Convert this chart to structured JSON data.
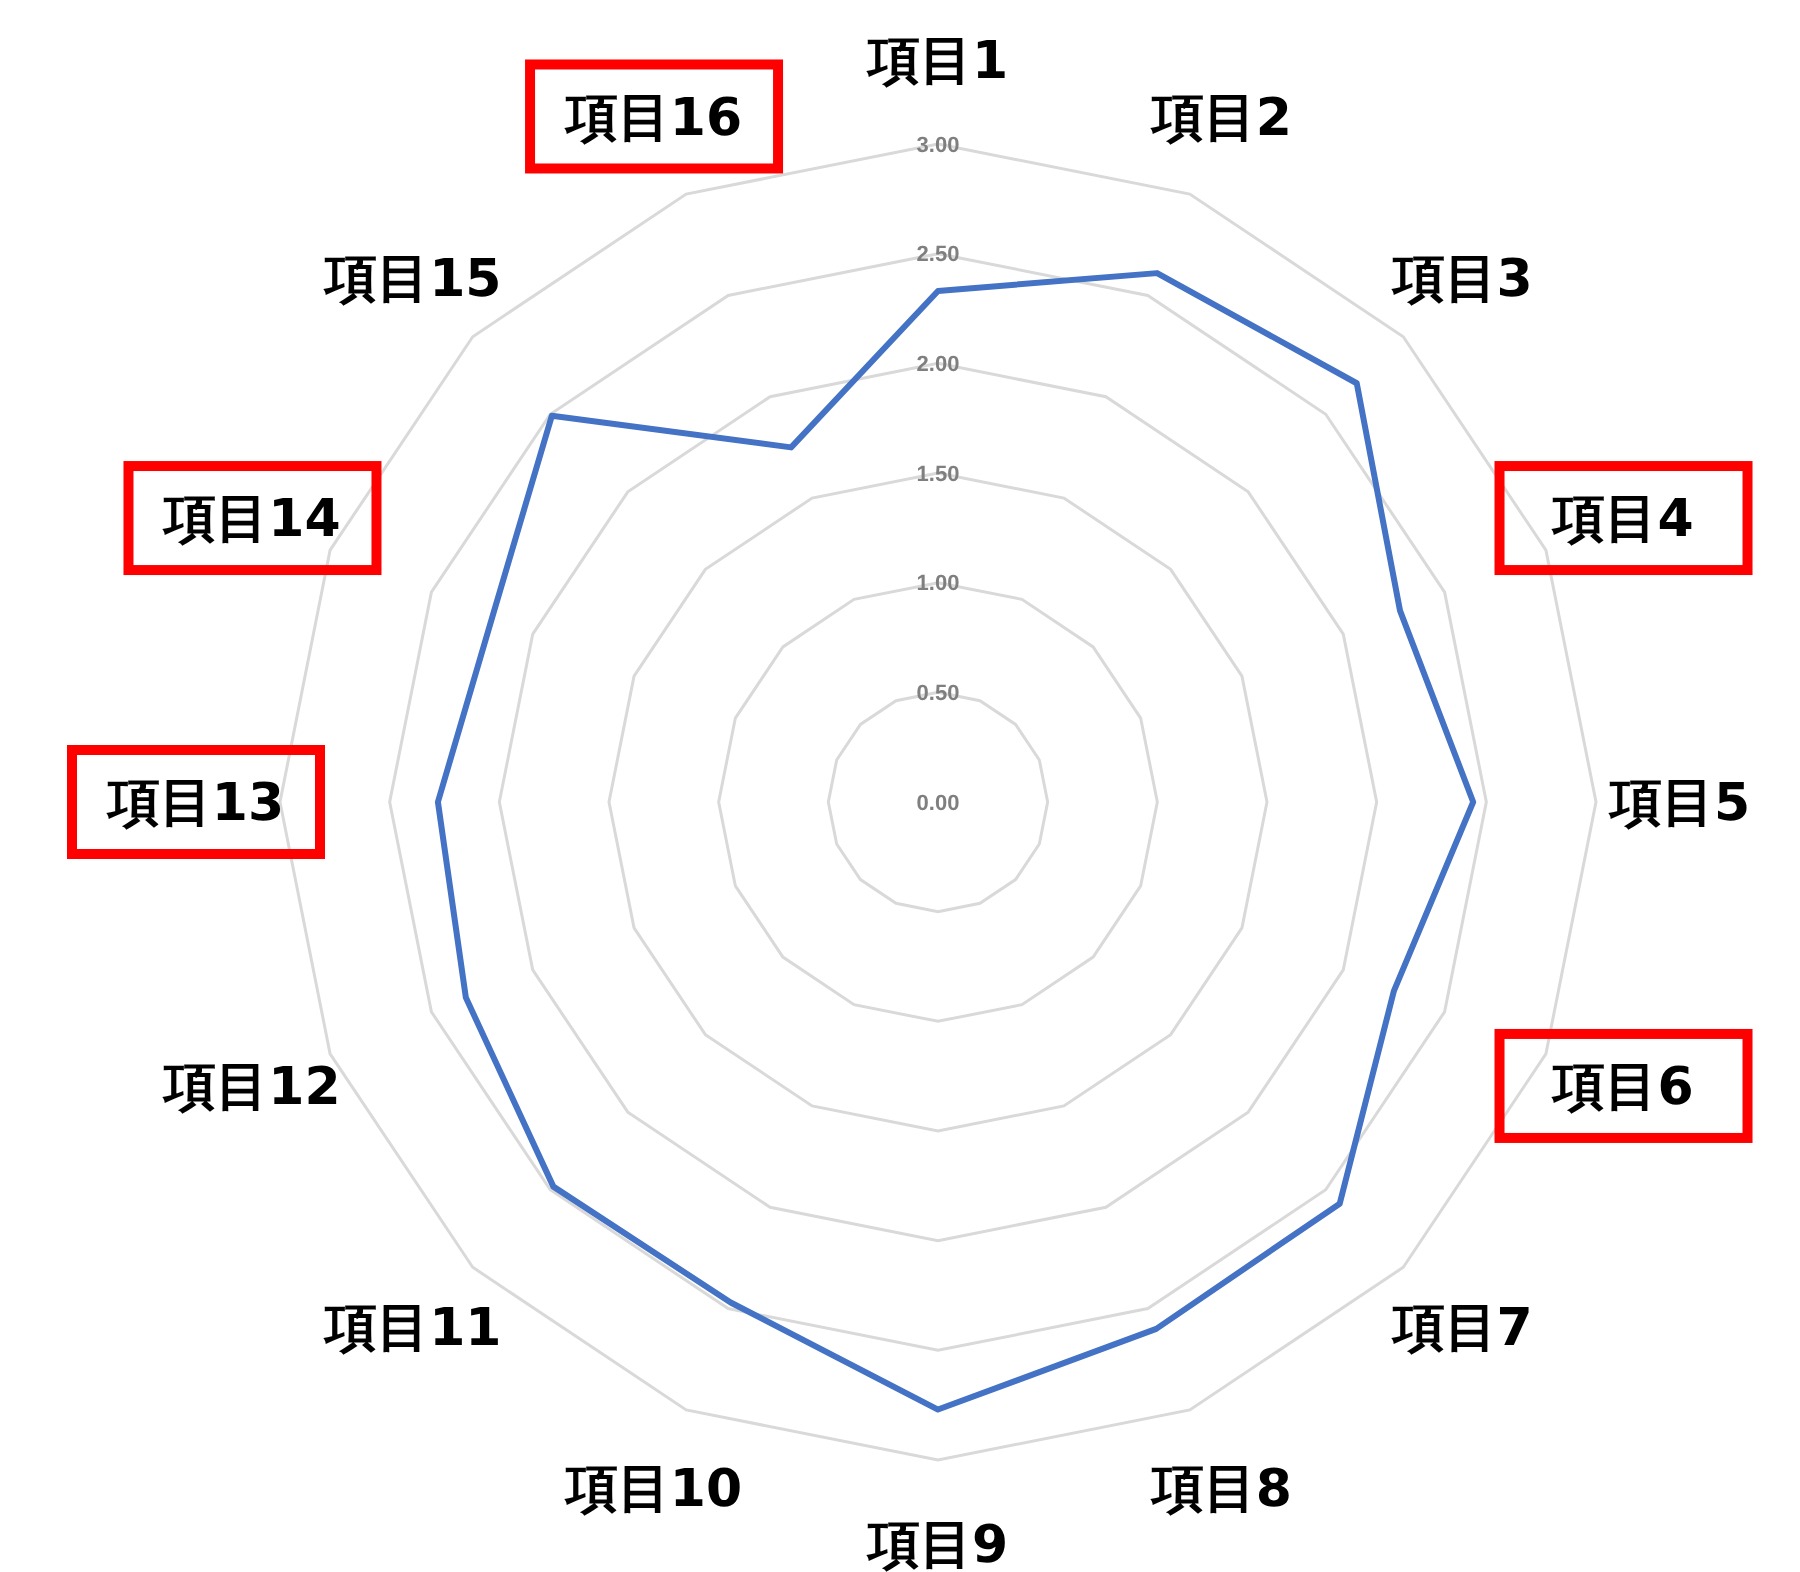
{
  "chart_data": {
    "type": "radar",
    "categories": [
      "項目1",
      "項目2",
      "項目3",
      "項目4",
      "項目5",
      "項目6",
      "項目7",
      "項目8",
      "項目9",
      "項目10",
      "項目11",
      "項目12",
      "項目13",
      "項目14",
      "項目15",
      "項目16"
    ],
    "series": [
      {
        "color": "#4472c4",
        "values": [
          2.33,
          2.61,
          2.7,
          2.28,
          2.44,
          2.25,
          2.59,
          2.6,
          2.77,
          2.47,
          2.48,
          2.33,
          2.28,
          2.2,
          2.49,
          1.75
        ]
      }
    ],
    "ylim": [
      0,
      3
    ],
    "yticks": [
      {
        "value": 0,
        "label": "0.00"
      },
      {
        "value": 0.5,
        "label": "0.50"
      },
      {
        "value": 1,
        "label": "1.00"
      },
      {
        "value": 1.5,
        "label": "1.50"
      },
      {
        "value": 2,
        "label": "2.00"
      },
      {
        "value": 2.5,
        "label": "2.50"
      },
      {
        "value": 3,
        "label": "3.00"
      }
    ],
    "grid": true,
    "marker": "none",
    "line_style": "solid"
  }
}
